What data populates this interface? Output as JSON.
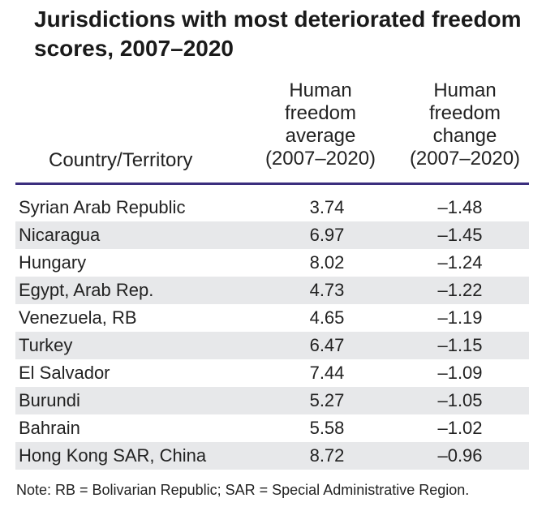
{
  "chart_data": {
    "type": "table",
    "title": "Jurisdictions with most deteriorated freedom scores, 2007–2020",
    "columns": [
      {
        "lines": [
          "Country/Territory"
        ]
      },
      {
        "lines": [
          "Human",
          "freedom",
          "average",
          "(2007–2020)"
        ]
      },
      {
        "lines": [
          "Human",
          "freedom",
          "change",
          "(2007–2020)"
        ]
      }
    ],
    "rows": [
      {
        "country": "Syrian Arab Republic",
        "average": "3.74",
        "change": "–1.48"
      },
      {
        "country": "Nicaragua",
        "average": "6.97",
        "change": "–1.45"
      },
      {
        "country": "Hungary",
        "average": "8.02",
        "change": "–1.24"
      },
      {
        "country": "Egypt, Arab Rep.",
        "average": "4.73",
        "change": "–1.22"
      },
      {
        "country": "Venezuela, RB",
        "average": "4.65",
        "change": "–1.19"
      },
      {
        "country": "Turkey",
        "average": "6.47",
        "change": "–1.15"
      },
      {
        "country": "El Salvador",
        "average": "7.44",
        "change": "–1.09"
      },
      {
        "country": "Burundi",
        "average": "5.27",
        "change": "–1.05"
      },
      {
        "country": "Bahrain",
        "average": "5.58",
        "change": "–1.02"
      },
      {
        "country": "Hong Kong SAR, China",
        "average": "8.72",
        "change": "–0.96"
      }
    ],
    "note": "Note: RB = Bolivarian Republic; SAR = Special Administrative Region.",
    "colors": {
      "header_rule": "#3b2e7e",
      "row_shade": "#e7e8ea",
      "text": "#222222"
    }
  }
}
